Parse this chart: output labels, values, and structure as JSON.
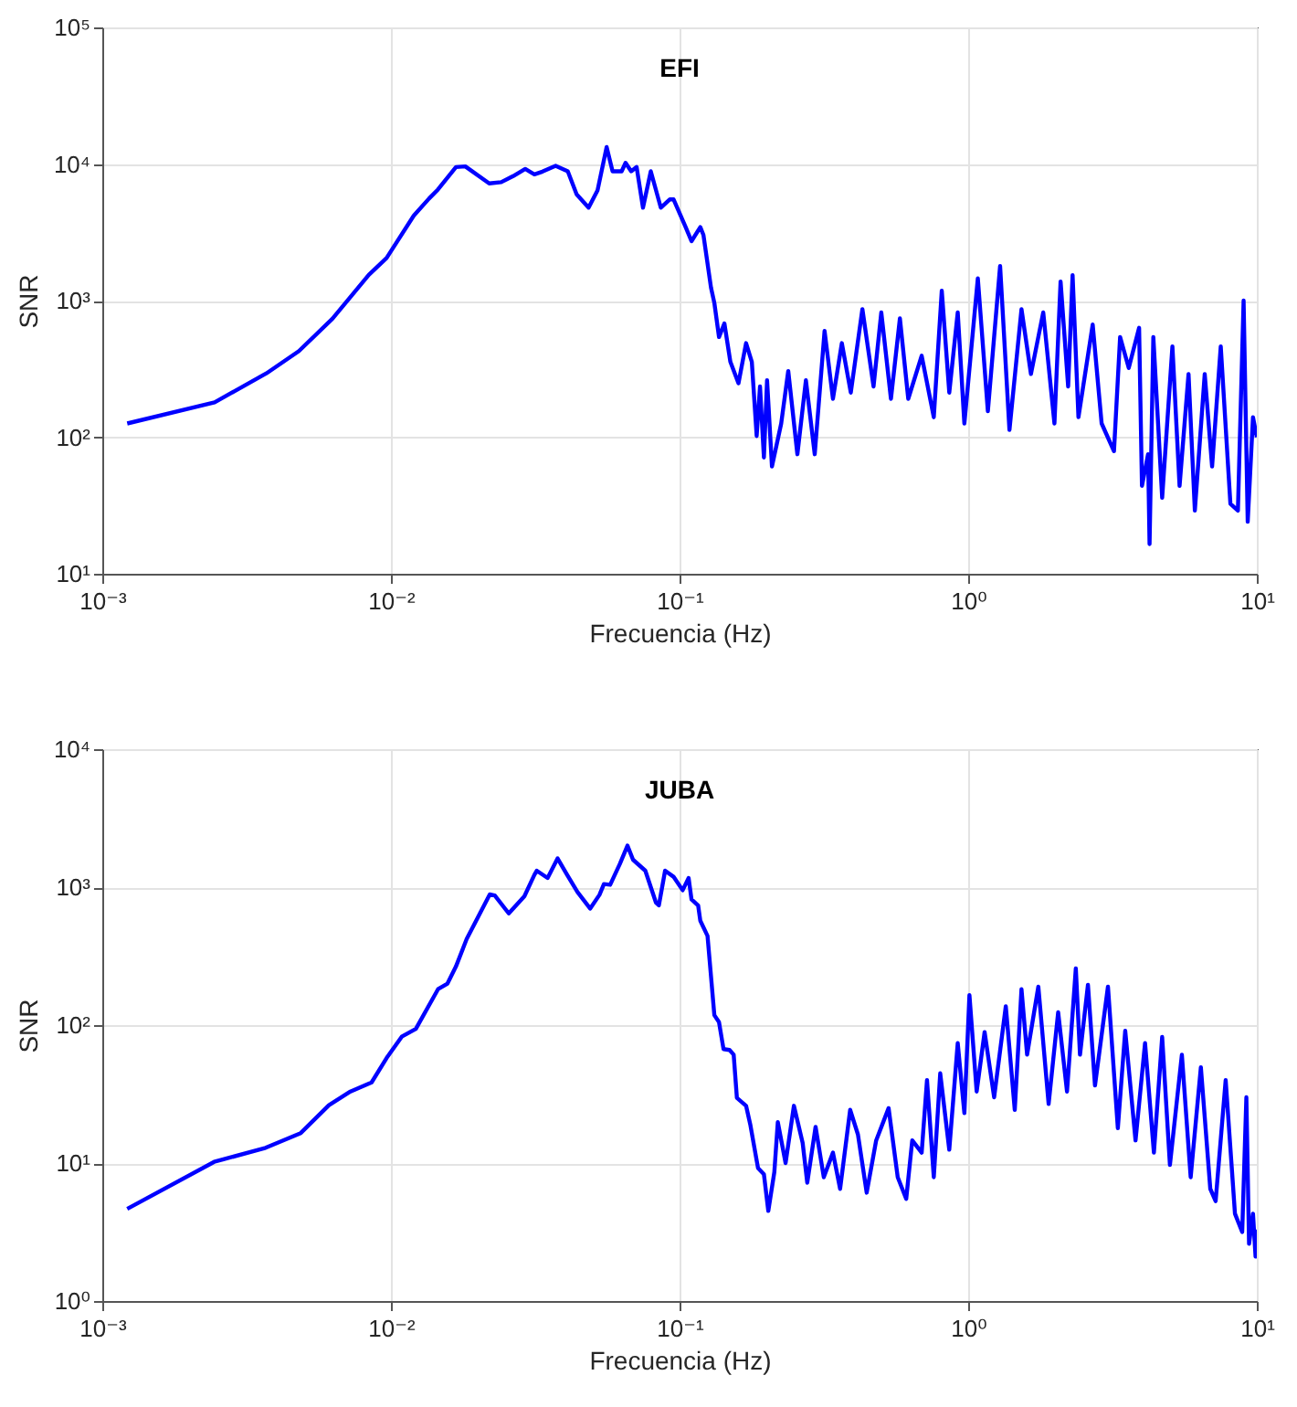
{
  "chart_data": [
    {
      "type": "line",
      "title": "EFI",
      "xlabel": "Frecuencia (Hz)",
      "ylabel": "SNR",
      "log": "xy",
      "grid": true,
      "xlim": [
        0.001,
        10
      ],
      "ylim": [
        10,
        100000
      ],
      "xticks": [
        {
          "value": 0.001,
          "label": "10⁻³"
        },
        {
          "value": 0.01,
          "label": "10⁻²"
        },
        {
          "value": 0.1,
          "label": "10⁻¹"
        },
        {
          "value": 1,
          "label": "10⁰"
        },
        {
          "value": 10,
          "label": "10¹"
        }
      ],
      "yticks": [
        {
          "value": 10,
          "label": "10¹"
        },
        {
          "value": 100,
          "label": "10²"
        },
        {
          "value": 1000,
          "label": "10³"
        },
        {
          "value": 10000,
          "label": "10⁴"
        },
        {
          "value": 100000,
          "label": "10⁵"
        }
      ],
      "series": [
        {
          "color": "#0000ff",
          "x": [
            0.00122,
            0.00245,
            0.0037,
            0.0048,
            0.00627,
            0.00838,
            0.00966,
            0.012,
            0.01355,
            0.01455,
            0.0168,
            0.0181,
            0.0219,
            0.0241,
            0.0265,
            0.0292,
            0.0314,
            0.0335,
            0.0372,
            0.041,
            0.044,
            0.0484,
            0.052,
            0.0559,
            0.0586,
            0.063,
            0.065,
            0.068,
            0.071,
            0.0747,
            0.0795,
            0.0861,
            0.0926,
            0.0953,
            0.105,
            0.11,
            0.118,
            0.121,
            0.1285,
            0.132,
            0.137,
            0.143,
            0.15,
            0.16,
            0.17,
            0.178,
            0.185,
            0.19,
            0.196,
            0.201,
            0.209,
            0.225,
            0.238,
            0.256,
            0.274,
            0.294,
            0.318,
            0.34,
            0.365,
            0.392,
            0.43,
            0.47,
            0.5,
            0.54,
            0.58,
            0.62,
            0.69,
            0.76,
            0.81,
            0.86,
            0.92,
            0.97,
            1.08,
            1.17,
            1.29,
            1.39,
            1.53,
            1.65,
            1.82,
            1.99,
            2.09,
            2.22,
            2.3,
            2.41,
            2.7,
            2.9,
            3.2,
            3.36,
            3.6,
            3.91,
            4.0,
            4.2,
            4.25,
            4.38,
            4.7,
            5.1,
            5.4,
            5.8,
            6.1,
            6.6,
            7.0,
            7.5,
            8.1,
            8.6,
            9.0,
            9.3,
            9.7,
            10
          ],
          "values": [
            126,
            180,
            293,
            427,
            736,
            1540,
            2050,
            4190,
            5580,
            6500,
            9500,
            9600,
            7210,
            7360,
            8150,
            9200,
            8400,
            8800,
            9700,
            8840,
            5990,
            4790,
            6430,
            13300,
            8840,
            8840,
            10200,
            8840,
            9500,
            4790,
            8840,
            4790,
            5510,
            5520,
            3450,
            2720,
            3450,
            3020,
            1245,
            960,
            541,
            681,
            356,
            248,
            488,
            356,
            102,
            235,
            71,
            261,
            61,
            126,
            305,
            75,
            261,
            75,
            600,
            191,
            488,
            212,
            865,
            235,
            820,
            191,
            740,
            191,
            395,
            140,
            1180,
            212,
            820,
            126,
            1455,
            155,
            1790,
            113,
            865,
            290,
            820,
            126,
            1380,
            235,
            1535,
            140,
            667,
            126,
            79,
            541,
            321,
            632,
            44,
            75,
            16.5,
            541,
            36,
            462,
            44,
            290,
            29,
            290,
            61,
            462,
            32.5,
            29,
            1000,
            24,
            140,
            100
          ]
        }
      ]
    },
    {
      "type": "line",
      "title": "JUBA",
      "xlabel": "Frecuencia (Hz)",
      "ylabel": "SNR",
      "log": "xy",
      "grid": true,
      "xlim": [
        0.001,
        10
      ],
      "ylim": [
        1,
        10000
      ],
      "xticks": [
        {
          "value": 0.001,
          "label": "10⁻³"
        },
        {
          "value": 0.01,
          "label": "10⁻²"
        },
        {
          "value": 0.1,
          "label": "10⁻¹"
        },
        {
          "value": 1,
          "label": "10⁰"
        },
        {
          "value": 10,
          "label": "10¹"
        }
      ],
      "yticks": [
        {
          "value": 1,
          "label": "10⁰"
        },
        {
          "value": 10,
          "label": "10¹"
        },
        {
          "value": 100,
          "label": "10²"
        },
        {
          "value": 1000,
          "label": "10³"
        },
        {
          "value": 10000,
          "label": "10⁴"
        }
      ],
      "series": [
        {
          "color": "#0000ff",
          "x": [
            0.00122,
            0.00244,
            0.00368,
            0.00487,
            0.0061,
            0.00724,
            0.00857,
            0.00966,
            0.0109,
            0.0122,
            0.01456,
            0.0157,
            0.0168,
            0.0183,
            0.022,
            0.0229,
            0.0256,
            0.029,
            0.0314,
            0.032,
            0.0349,
            0.0378,
            0.0408,
            0.0443,
            0.049,
            0.0528,
            0.0547,
            0.0575,
            0.0621,
            0.066,
            0.069,
            0.0761,
            0.0828,
            0.0848,
            0.0891,
            0.0953,
            0.1025,
            0.1075,
            0.11,
            0.116,
            0.118,
            0.125,
            0.132,
            0.137,
            0.142,
            0.149,
            0.154,
            0.158,
            0.17,
            0.176,
            0.187,
            0.196,
            0.203,
            0.213,
            0.219,
            0.233,
            0.249,
            0.267,
            0.277,
            0.296,
            0.316,
            0.34,
            0.36,
            0.39,
            0.415,
            0.445,
            0.48,
            0.53,
            0.57,
            0.61,
            0.64,
            0.69,
            0.72,
            0.76,
            0.8,
            0.86,
            0.92,
            0.97,
            1.01,
            1.07,
            1.14,
            1.23,
            1.35,
            1.45,
            1.53,
            1.6,
            1.75,
            1.9,
            2.05,
            2.2,
            2.36,
            2.44,
            2.6,
            2.75,
            3.05,
            3.3,
            3.5,
            3.8,
            4.1,
            4.4,
            4.7,
            5.0,
            5.5,
            5.9,
            6.4,
            6.9,
            7.2,
            7.8,
            8.4,
            8.9,
            9.2,
            9.4,
            9.7,
            9.9,
            10
          ],
          "values": [
            4.66,
            10.2,
            12.9,
            16.5,
            26.3,
            33,
            38.4,
            57.7,
            82.4,
            94,
            182,
            200,
            266,
            421,
            885,
            870,
            645,
            859,
            1226,
            1316,
            1165,
            1615,
            1226,
            922,
            700,
            880,
            1052,
            1040,
            1472,
            1997,
            1580,
            1316,
            774,
            738,
            1316,
            1190,
            950,
            1165,
            815,
            736,
            571,
            443,
            118,
            105,
            67,
            66,
            61,
            29.7,
            26,
            18.8,
            9.2,
            8.3,
            4.5,
            8.6,
            19.8,
            10,
            26,
            14,
            7.2,
            18.3,
            7.9,
            11.9,
            6.5,
            24.3,
            16.1,
            6.1,
            14.6,
            25,
            7.9,
            5.5,
            14.6,
            11.9,
            40,
            7.9,
            44.7,
            12.5,
            74,
            23,
            165,
            33,
            89,
            30,
            137,
            24.3,
            182,
            61,
            190,
            26.8,
            124,
            33,
            258,
            61,
            196,
            36.5,
            190,
            17.9,
            91,
            14.6,
            74,
            11.9,
            82,
            9.7,
            61,
            7.9,
            49.5,
            6.5,
            5.3,
            40,
            4.3,
            3.16,
            30,
            2.6,
            4.3,
            2.1,
            3.3
          ]
        }
      ]
    }
  ]
}
